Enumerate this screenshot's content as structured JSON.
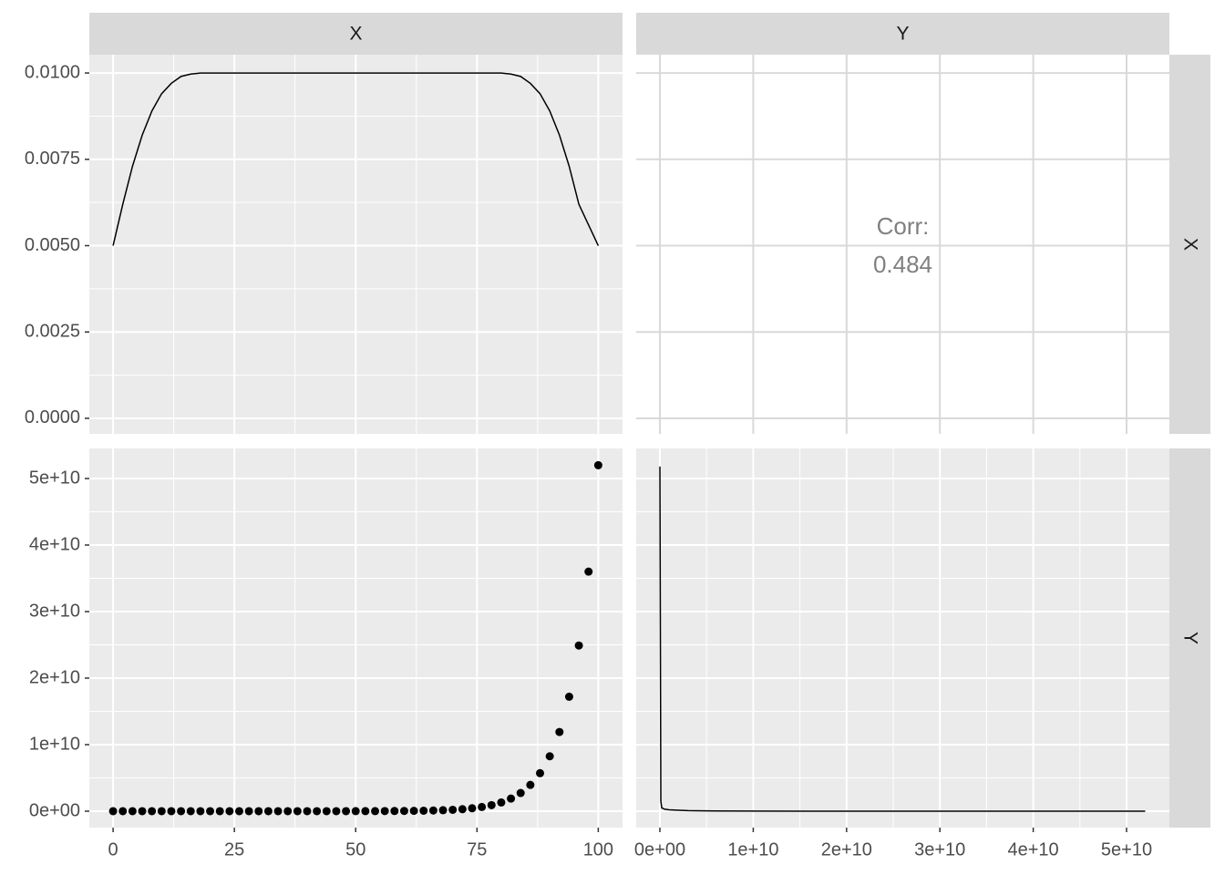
{
  "strips": {
    "columns": [
      "X",
      "Y"
    ],
    "rows": [
      "X",
      "Y"
    ]
  },
  "chart_data": [
    {
      "type": "line",
      "color": "#000000",
      "x": [
        0,
        2,
        4,
        6,
        8,
        10,
        12,
        14,
        16,
        18,
        20,
        25,
        30,
        40,
        50,
        60,
        70,
        75,
        80,
        82,
        84,
        86,
        88,
        90,
        92,
        94,
        96,
        98,
        100
      ],
      "values": [
        0.005,
        0.0062,
        0.0073,
        0.0082,
        0.0089,
        0.0094,
        0.0097,
        0.0099,
        0.00997,
        0.01,
        0.01,
        0.01,
        0.01,
        0.01,
        0.01,
        0.01,
        0.01,
        0.01,
        0.01,
        0.00997,
        0.0099,
        0.0097,
        0.0094,
        0.0089,
        0.0082,
        0.0073,
        0.0062,
        0.0056,
        0.005
      ],
      "xlim": [
        -4.9,
        105
      ],
      "ylim": [
        -0.00045,
        0.01053
      ],
      "xticks": [
        0,
        25,
        50,
        75,
        100
      ],
      "yticks": [
        {
          "value": 0,
          "label": "0.0000"
        },
        {
          "value": 0.0025,
          "label": "0.0025"
        },
        {
          "value": 0.005,
          "label": "0.0050"
        },
        {
          "value": 0.0075,
          "label": "0.0075"
        },
        {
          "value": 0.01,
          "label": "0.0100"
        }
      ]
    },
    {
      "type": "text",
      "label": "Corr:",
      "value": 0.484,
      "color": "#808080"
    },
    {
      "type": "scatter",
      "color": "#000000",
      "x": [
        0,
        2,
        4,
        6,
        8,
        10,
        12,
        14,
        16,
        18,
        20,
        22,
        24,
        26,
        28,
        30,
        32,
        34,
        36,
        38,
        40,
        42,
        44,
        46,
        48,
        50,
        52,
        54,
        56,
        58,
        60,
        62,
        64,
        66,
        68,
        70,
        72,
        74,
        76,
        78,
        80,
        82,
        84,
        86,
        88,
        90,
        92,
        94,
        96,
        98,
        100
      ],
      "values": [
        0,
        0,
        0,
        0,
        0,
        0,
        0,
        0,
        0,
        0,
        0,
        0,
        0,
        0,
        0,
        0,
        0,
        0,
        0,
        0,
        0,
        0,
        0,
        0,
        0,
        5200000,
        7600000,
        11000000,
        16000000,
        23000000,
        33000000,
        48000000,
        69000000,
        100000000,
        144000000,
        208000000,
        300000000,
        434000000,
        627000000,
        906000000,
        1310000000,
        1890000000,
        2730000000,
        3950000000,
        5710000000,
        8250000000,
        11900000000,
        17200000000,
        24900000000,
        36000000000,
        52000000000
      ],
      "xlim": [
        -4.9,
        105
      ],
      "ylim": [
        -2470000000,
        54520000000
      ],
      "xticks": [
        0,
        25,
        50,
        75,
        100
      ],
      "yticks": [
        {
          "value": 0,
          "label": "0e+00"
        },
        {
          "value": 10000000000,
          "label": "1e+10"
        },
        {
          "value": 20000000000,
          "label": "2e+10"
        },
        {
          "value": 30000000000,
          "label": "3e+10"
        },
        {
          "value": 40000000000,
          "label": "4e+10"
        },
        {
          "value": 50000000000,
          "label": "5e+10"
        }
      ]
    },
    {
      "type": "line",
      "color": "#000000",
      "x": [
        0,
        100000000,
        200000000,
        500000000,
        1000000000,
        3000000000,
        6000000000,
        10000000000,
        20000000000,
        52000000000
      ],
      "values": [
        51800000000,
        1500000000,
        500000000,
        300000000,
        200000000,
        80000000,
        30000000,
        10000000,
        0,
        0
      ],
      "xlim": [
        -2540000000,
        54590000000
      ],
      "ylim": [
        -2470000000,
        54520000000
      ],
      "xticks": [
        {
          "value": 0,
          "label": "0e+00"
        },
        {
          "value": 10000000000,
          "label": "1e+10"
        },
        {
          "value": 20000000000,
          "label": "2e+10"
        },
        {
          "value": 30000000000,
          "label": "3e+10"
        },
        {
          "value": 40000000000,
          "label": "4e+10"
        },
        {
          "value": 50000000000,
          "label": "5e+10"
        }
      ]
    }
  ]
}
